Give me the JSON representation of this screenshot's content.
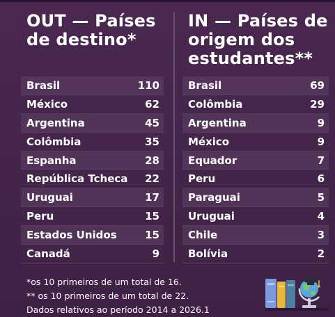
{
  "out": {
    "title": "OUT — Países de destino*",
    "rows": [
      {
        "country": "Brasil",
        "value": "110"
      },
      {
        "country": "México",
        "value": "62"
      },
      {
        "country": "Argentina",
        "value": "45"
      },
      {
        "country": "Colômbia",
        "value": "35"
      },
      {
        "country": "Espanha",
        "value": "28"
      },
      {
        "country": "República Tcheca",
        "value": "22"
      },
      {
        "country": "Uruguai",
        "value": "17"
      },
      {
        "country": "Peru",
        "value": "15"
      },
      {
        "country": "Estados Unidos",
        "value": "15"
      },
      {
        "country": "Canadá",
        "value": "9"
      }
    ]
  },
  "in": {
    "title": "IN — Países de origem dos estudantes**",
    "rows": [
      {
        "country": "Brasil",
        "value": "69"
      },
      {
        "country": "Colômbia",
        "value": "29"
      },
      {
        "country": "Argentina",
        "value": "9"
      },
      {
        "country": "México",
        "value": "9"
      },
      {
        "country": "Equador",
        "value": "7"
      },
      {
        "country": "Peru",
        "value": "6"
      },
      {
        "country": "Paraguai",
        "value": "5"
      },
      {
        "country": "Uruguai",
        "value": "4"
      },
      {
        "country": "Chile",
        "value": "3"
      },
      {
        "country": "Bolívia",
        "value": "2"
      }
    ]
  },
  "notes": [
    "*os 10 primeiros de um total de 16.",
    "** os 10 primeiros de um total de 22.",
    "Dados relativos ao período 2014 a 2026.1"
  ],
  "colors": {
    "background": "#422347",
    "row_light": "#5f4164",
    "book_blue": "#6f8fd6",
    "book_yellow": "#e8b83a",
    "book_teal": "#4f7fa0"
  },
  "icons": {
    "illustration": "books-and-globe-icon"
  }
}
